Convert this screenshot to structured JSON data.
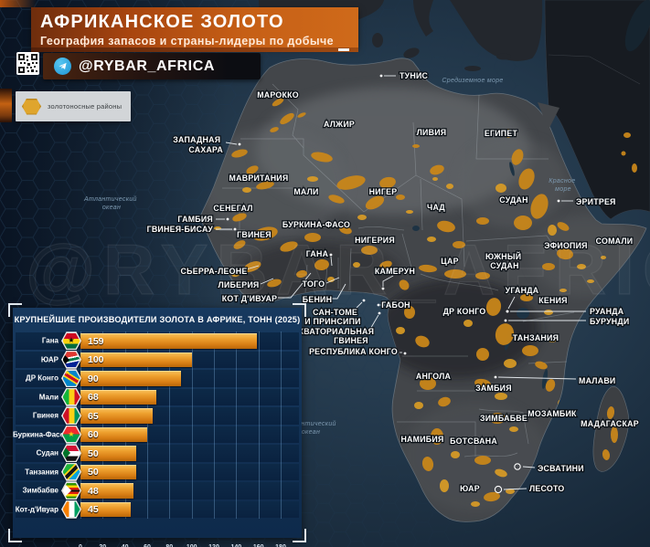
{
  "header": {
    "title": "АФРИКАНСКОЕ ЗОЛОТО",
    "subtitle": "География запасов и страны-лидеры по добыче",
    "telegram": "@RYBAR_AFRICA"
  },
  "legend": {
    "label": "золотоносные районы",
    "gold_color": "#dfa52d"
  },
  "map": {
    "watermark": "@RYBAR_AFRICA",
    "sea": {
      "atlantic": {
        "l1": "Атлантический",
        "l2": "океан"
      },
      "mediterranean": "Средиземное море",
      "red": {
        "l1": "Красное",
        "l2": "море"
      }
    },
    "labels": {
      "tunisia": "ТУНИС",
      "morocco": "МАРОККО",
      "algeria": "АЛЖИР",
      "libya": "ЛИВИЯ",
      "egypt": "ЕГИПЕТ",
      "west_sahara": {
        "l1": "ЗАПАДНАЯ",
        "l2": "САХАРА"
      },
      "mauritania": "МАВРИТАНИЯ",
      "mali": "МАЛИ",
      "niger": "НИГЕР",
      "chad": "ЧАД",
      "sudan": "СУДАН",
      "eritrea": "ЭРИТРЕЯ",
      "senegal": "СЕНЕГАЛ",
      "gambia": "ГАМБИЯ",
      "guinea_bissau": "ГВИНЕЯ-БИСАУ",
      "guinea": "ГВИНЕЯ",
      "burkina_faso": "БУРКИНА-ФАСО",
      "nigeria": "НИГЕРИЯ",
      "ghana": "ГАНА",
      "somalia": "СОМАЛИ",
      "ethiopia": "ЭФИОПИЯ",
      "car": "ЦАР",
      "south_sudan": {
        "l1": "ЮЖНЫЙ",
        "l2": "СУДАН"
      },
      "sierra_leone": "СЬЕРРА-ЛЕОНЕ",
      "liberia": "ЛИБЕРИЯ",
      "cote_divoire": "КОТ Д'ИВУАР",
      "togo": "ТОГО",
      "benin": "БЕНИН",
      "sao_tome": {
        "l1": "САН-ТОМЕ",
        "l2": "И ПРИНСИПИ"
      },
      "eq_guinea": {
        "l1": "ЭКВАТОРИАЛЬНАЯ",
        "l2": "ГВИНЕЯ"
      },
      "cameroon": "КАМЕРУН",
      "gabon": "ГАБОН",
      "rep_congo": "РЕСПУБЛИКА КОНГО",
      "dr_congo": "ДР КОНГО",
      "uganda": "УГАНДА",
      "kenya": "КЕНИЯ",
      "rwanda": "РУАНДА",
      "burundi": "БУРУНДИ",
      "tanzania": "ТАНЗАНИЯ",
      "angola": "АНГОЛА",
      "zambia": "ЗАМБИЯ",
      "malawi": "МАЛАВИ",
      "zimbabwe": "ЗИМБАБВЕ",
      "mozambique": "МОЗАМБИК",
      "madagascar": "МАДАГАСКАР",
      "namibia": "НАМИБИЯ",
      "botswana": "БОТСВАНА",
      "eswatini": "ЭСВАТИНИ",
      "south_africa": "ЮАР",
      "lesotho": "ЛЕСОТО"
    }
  },
  "chart_data": {
    "type": "bar",
    "orientation": "horizontal",
    "title": "КРУПНЕЙШИЕ ПРОИЗВОДИТЕЛИ ЗОЛОТА В АФРИКЕ, ТОНН (2025)",
    "categories": [
      "Гана",
      "ЮАР",
      "ДР Конго",
      "Мали",
      "Гвинея",
      "Буркина-Фасо",
      "Судан",
      "Танзания",
      "Зимбабве",
      "Кот-д'Ивуар"
    ],
    "values": [
      159,
      100,
      90,
      68,
      65,
      60,
      50,
      50,
      48,
      45
    ],
    "flag_icons": [
      "flag-ghana",
      "flag-south-africa",
      "flag-dr-congo",
      "flag-mali",
      "flag-guinea",
      "flag-burkina-faso",
      "flag-sudan",
      "flag-tanzania",
      "flag-zimbabwe",
      "flag-cote-divoire"
    ],
    "x_ticks": [
      0,
      20,
      40,
      60,
      80,
      100,
      120,
      140,
      160,
      180
    ],
    "xlim": [
      0,
      180
    ],
    "bar_color": "#e6951f",
    "grid": true,
    "legend_position": "none"
  }
}
